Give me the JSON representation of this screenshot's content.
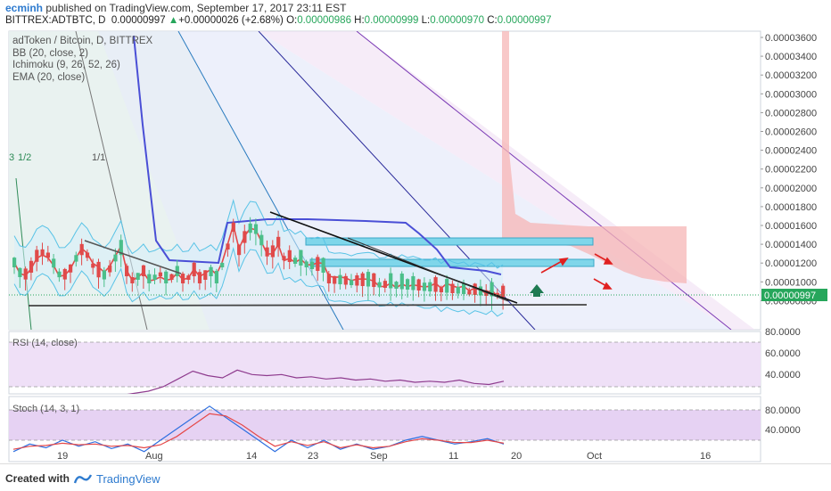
{
  "header": {
    "user": "ecminh",
    "published": "published on TradingView.com, September 17, 2017 23:11 EST",
    "symbol": "BITTREX:ADTBTC, D",
    "last": "0.00000997",
    "change": "+0.00000026 (+2.68%)",
    "o_label": "O:",
    "o": "0.00000986",
    "h_label": "H:",
    "h": "0.00000999",
    "l_label": "L:",
    "l": "0.00000970",
    "c_label": "C:",
    "c": "0.00000997"
  },
  "legend": {
    "title": "adToken / Bitcoin, D, BITTREX",
    "bb": "BB (20, close, 2)",
    "ichimoku": "Ichimoku (9, 26, 52, 26)",
    "ema": "EMA (20, close)"
  },
  "fib_labels": [
    "3",
    "1/2",
    "1/1"
  ],
  "price_axis": {
    "ticks": [
      "0.00003600",
      "0.00003400",
      "0.00003200",
      "0.00003000",
      "0.00002800",
      "0.00002600",
      "0.00002400",
      "0.00002200",
      "0.00002000",
      "0.00001800",
      "0.00001600",
      "0.00001400",
      "0.00001200",
      "0.00001000",
      "0.00000800"
    ],
    "current": "0.00000997"
  },
  "rsi": {
    "label": "RSI (14, close)",
    "ticks": [
      "80.0000",
      "60.0000",
      "40.0000"
    ]
  },
  "stoch": {
    "label": "Stoch (14, 3, 1)",
    "ticks": [
      "80.0000",
      "40.0000"
    ]
  },
  "time_axis": [
    "19",
    "Aug",
    "14",
    "23",
    "Sep",
    "11",
    "20",
    "Oct",
    "16"
  ],
  "footer": {
    "created": "Created with",
    "brand": "TradingView"
  },
  "colors": {
    "candle_up": "#4bbf8a",
    "candle_down": "#e04a4a",
    "bb": "#59c3e6",
    "ichimoku_base": "#4a4fd6",
    "ema": "#e54848",
    "rsi": "#8e3b8e",
    "stoch_k": "#2e6fe0",
    "stoch_d": "#e54848",
    "box": "#7fd6ea",
    "arrow_up": "#1f7a52",
    "arrow": "#e02020"
  },
  "chart_data": {
    "type": "candlestick",
    "title": "adToken / Bitcoin, D, BITTREX",
    "price_range": [
      6.8e-06,
      3.68e-05
    ],
    "rsi_series": [
      30,
      31,
      32,
      34,
      36,
      40,
      47,
      54,
      50,
      48,
      55,
      51,
      50,
      51,
      48,
      49,
      47,
      48,
      46,
      47,
      45,
      46,
      44,
      45,
      44,
      46,
      43,
      42,
      45
    ],
    "stoch_k": [
      25,
      35,
      30,
      40,
      32,
      38,
      29,
      35,
      25,
      40,
      55,
      70,
      85,
      70,
      55,
      40,
      25,
      40,
      30,
      40,
      28,
      35,
      28,
      32,
      40,
      45,
      40,
      35,
      38,
      42,
      35
    ],
    "stoch_d": [
      28,
      32,
      33,
      36,
      34,
      35,
      32,
      33,
      30,
      34,
      45,
      60,
      75,
      72,
      60,
      45,
      32,
      38,
      33,
      38,
      30,
      34,
      30,
      32,
      38,
      42,
      40,
      37,
      37,
      40,
      36
    ]
  }
}
